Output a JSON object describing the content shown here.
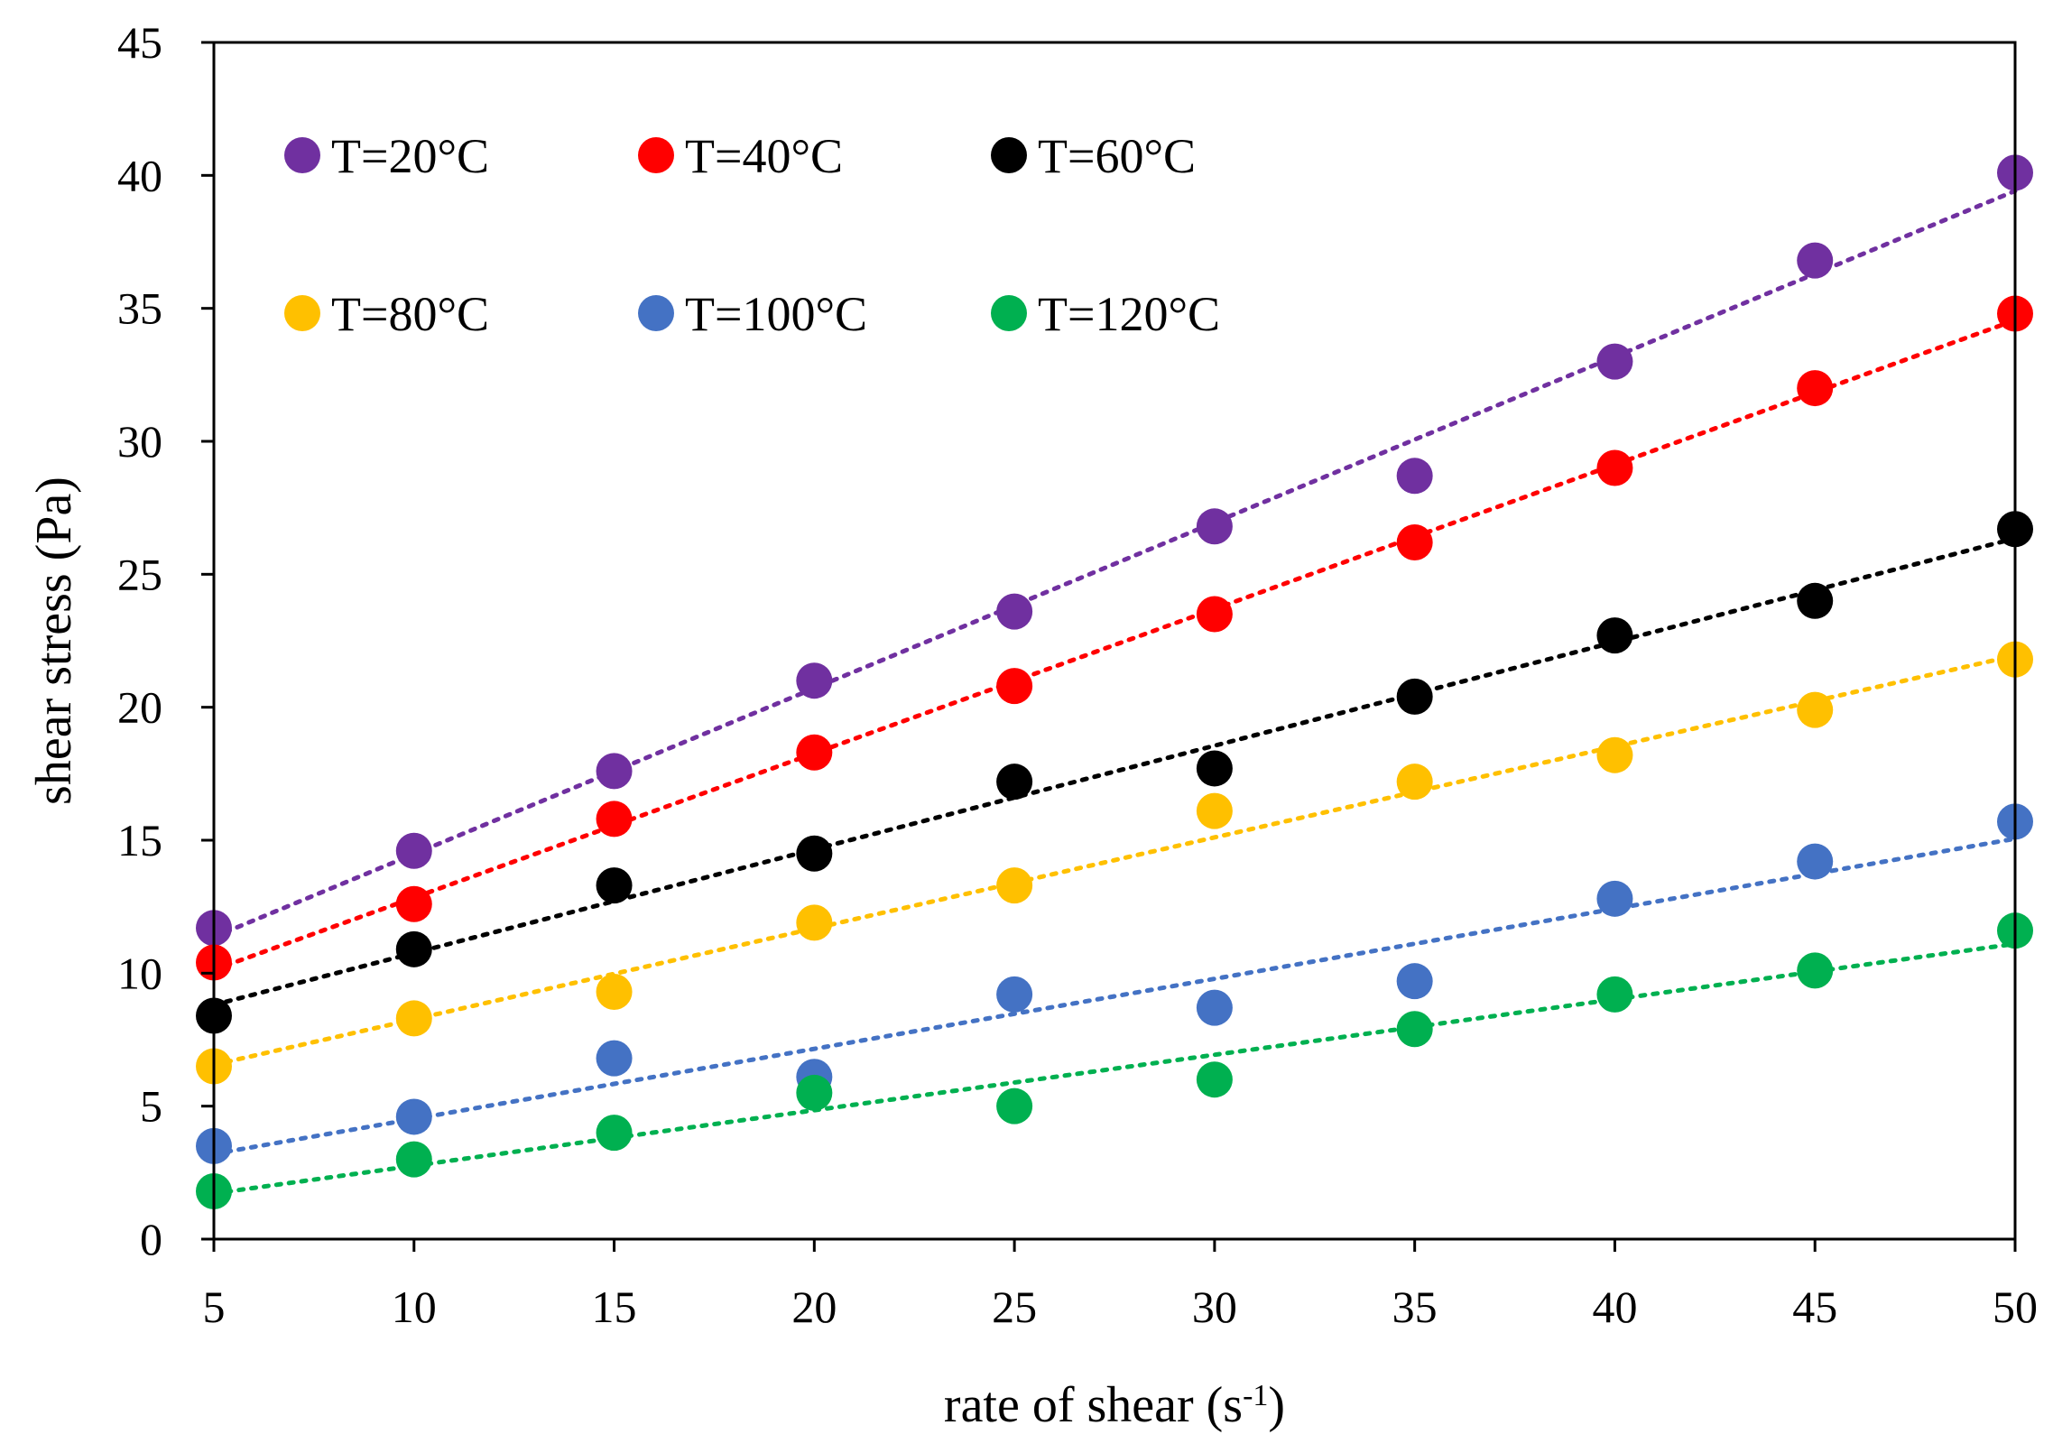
{
  "chart_data": {
    "type": "scatter",
    "title": "",
    "xlabel": "rate of shear (s",
    "xlabel_sup": "-1",
    "xlabel_close": ")",
    "ylabel": "shear stress (Pa)",
    "xlim": [
      5,
      50
    ],
    "ylim": [
      0,
      45
    ],
    "x_ticks": [
      "5",
      "10",
      "15",
      "20",
      "25",
      "30",
      "35",
      "40",
      "45",
      "50"
    ],
    "y_ticks": [
      "0",
      "5",
      "10",
      "15",
      "20",
      "25",
      "30",
      "35",
      "40",
      "45"
    ],
    "x": [
      5,
      10,
      15,
      20,
      25,
      30,
      35,
      40,
      45,
      50
    ],
    "grid": false,
    "legend_position": "top-left",
    "trendline": "linear, dotted",
    "series": [
      {
        "name": "T=20°C",
        "color": "#7030A0",
        "values": [
          11.7,
          14.6,
          17.6,
          21.0,
          23.6,
          26.8,
          28.7,
          33.0,
          36.8,
          40.1
        ]
      },
      {
        "name": "T=40°C",
        "color": "#FF0000",
        "values": [
          10.4,
          12.6,
          15.8,
          18.3,
          20.8,
          23.5,
          26.2,
          29.0,
          32.0,
          34.8
        ]
      },
      {
        "name": "T=60°C",
        "color": "#000000",
        "values": [
          8.4,
          10.9,
          13.3,
          14.5,
          17.2,
          17.7,
          20.4,
          22.7,
          24.0,
          26.7
        ]
      },
      {
        "name": "T=80°C",
        "color": "#FFC000",
        "values": [
          6.5,
          8.3,
          9.3,
          11.9,
          13.3,
          16.1,
          17.2,
          18.2,
          19.9,
          21.8
        ]
      },
      {
        "name": "T=100°C",
        "color": "#4472C4",
        "values": [
          3.5,
          4.6,
          6.8,
          6.1,
          9.2,
          8.7,
          9.7,
          12.8,
          14.2,
          15.7
        ]
      },
      {
        "name": "T=120°C",
        "color": "#00B050",
        "values": [
          1.8,
          3.0,
          4.0,
          5.5,
          5.0,
          6.0,
          7.9,
          9.2,
          10.1,
          11.6
        ]
      }
    ]
  }
}
